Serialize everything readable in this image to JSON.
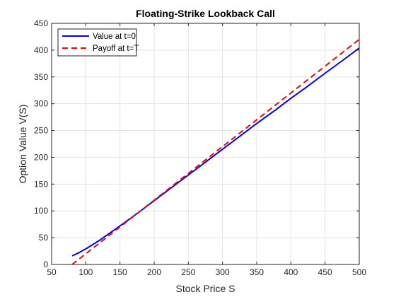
{
  "chart_data": {
    "type": "line",
    "title": "Floating-Strike Lookback Call",
    "xlabel": "Stock Price S",
    "ylabel": "Option Value V(S)",
    "xlim": [
      50,
      500
    ],
    "ylim": [
      0,
      450
    ],
    "xticks": [
      50,
      100,
      150,
      200,
      250,
      300,
      350,
      400,
      450,
      500
    ],
    "yticks": [
      0,
      50,
      100,
      150,
      200,
      250,
      300,
      350,
      400,
      450
    ],
    "grid": true,
    "legend_position": "top-left",
    "series": [
      {
        "name": "Value at t=0",
        "color": "#0000ff",
        "style": "solid",
        "x": [
          80,
          90,
          100,
          110,
          120,
          130,
          140,
          150,
          160,
          175,
          200,
          225,
          250,
          275,
          300,
          325,
          350,
          375,
          400,
          425,
          450,
          475,
          500
        ],
        "y": [
          16,
          22,
          29,
          37,
          45,
          54,
          63,
          72,
          81,
          95,
          119,
          143,
          167,
          191,
          215,
          239,
          263,
          286,
          310,
          333,
          357,
          380,
          404
        ]
      },
      {
        "name": "Payoff at t=T",
        "color": "#ff0000",
        "style": "dashed",
        "x": [
          80,
          500
        ],
        "y": [
          0,
          420
        ]
      }
    ]
  }
}
